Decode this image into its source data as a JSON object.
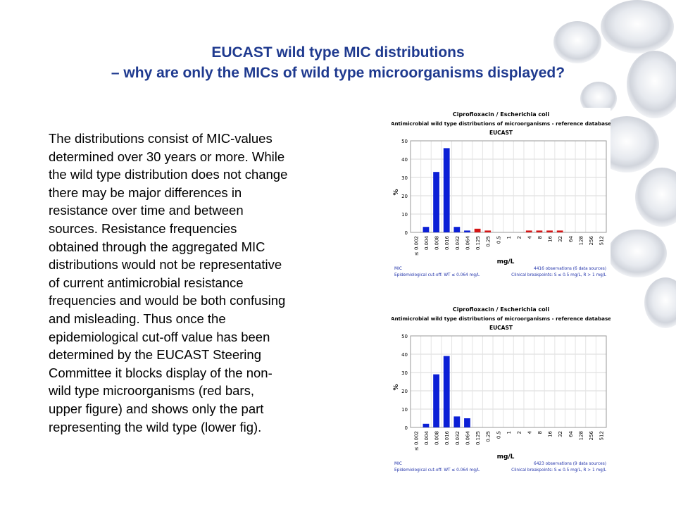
{
  "slide": {
    "title_line1": "EUCAST wild type MIC distributions",
    "title_line2": "– why are only the MICs of wild type microorganisms displayed?",
    "body_lines": [
      "The distributions consist of MIC-values",
      "determined over 30 years or more. While",
      "the wild type distribution does not change",
      "there may be major differences in",
      "resistance over time and between",
      "sources. Resistance frequencies",
      "obtained through the aggregated MIC",
      "distributions would not be representative",
      "of current antimicrobial resistance",
      "frequencies and would be both confusing",
      "and misleading. Thus once the",
      "epidemiological cut-off value has been",
      "determined by the EUCAST Steering",
      "Committee it blocks display of the non-",
      "wild type microorganisms (red bars,",
      "upper figure) and shows only the part",
      "representing the wild type (lower fig)."
    ]
  },
  "colors": {
    "title": "#1f3a8f",
    "wild_type_bar": "#0b1fd6",
    "non_wild_type_bar": "#d41515",
    "footer_text": "#2233aa"
  },
  "chart_data": [
    {
      "type": "bar",
      "title": "Ciprofloxacin / Escherichia coli",
      "subtitle": "Antimicrobial wild type distributions of microorganisms - reference database",
      "source": "EUCAST",
      "ylabel": "%",
      "xlabel": "mg/L",
      "ylim": [
        0,
        50
      ],
      "yticks": [
        0,
        10,
        20,
        30,
        40,
        50
      ],
      "grid": true,
      "categories": [
        "≤ 0.002",
        "0.004",
        "0.008",
        "0.016",
        "0.032",
        "0.064",
        "0.125",
        "0.25",
        "0.5",
        "1",
        "2",
        "4",
        "8",
        "16",
        "32",
        "64",
        "128",
        "256",
        "512"
      ],
      "values": [
        0,
        3,
        33,
        46,
        3,
        1,
        2,
        1,
        0,
        0,
        0,
        1,
        1,
        1,
        1,
        0,
        0,
        0,
        0
      ],
      "bar_groups": [
        "wt",
        "wt",
        "wt",
        "wt",
        "wt",
        "wt",
        "nwt",
        "nwt",
        "nwt",
        "nwt",
        "nwt",
        "nwt",
        "nwt",
        "nwt",
        "nwt",
        "nwt",
        "nwt",
        "nwt",
        "nwt"
      ],
      "footer_left_1": "MIC",
      "footer_left_2": "Epidemiological cut-off: WT ≤ 0.064 mg/L",
      "footer_right_1": "4416 observations (6 data sources)",
      "footer_right_2": "Clinical breakpoints: S ≤ 0.5 mg/L, R > 1 mg/L"
    },
    {
      "type": "bar",
      "title": "Ciprofloxacin / Escherichia coli",
      "subtitle": "Antimicrobial wild type distributions of microorganisms - reference database",
      "source": "EUCAST",
      "ylabel": "%",
      "xlabel": "mg/L",
      "ylim": [
        0,
        50
      ],
      "yticks": [
        0,
        10,
        20,
        30,
        40,
        50
      ],
      "grid": true,
      "categories": [
        "≤ 0.002",
        "0.004",
        "0.008",
        "0.016",
        "0.032",
        "0.064",
        "0.125",
        "0.25",
        "0.5",
        "1",
        "2",
        "4",
        "8",
        "16",
        "32",
        "64",
        "128",
        "256",
        "512"
      ],
      "values": [
        0,
        2,
        29,
        39,
        6,
        5,
        0,
        0,
        0,
        0,
        0,
        0,
        0,
        0,
        0,
        0,
        0,
        0,
        0
      ],
      "bar_groups": [
        "wt",
        "wt",
        "wt",
        "wt",
        "wt",
        "wt",
        "nwt",
        "nwt",
        "nwt",
        "nwt",
        "nwt",
        "nwt",
        "nwt",
        "nwt",
        "nwt",
        "nwt",
        "nwt",
        "nwt",
        "nwt"
      ],
      "footer_left_1": "MIC",
      "footer_left_2": "Epidemiological cut-off: WT ≤ 0.064 mg/L",
      "footer_right_1": "6423 observations (9 data sources)",
      "footer_right_2": "Clinical breakpoints: S ≤ 0.5 mg/L, R > 1 mg/L"
    }
  ]
}
